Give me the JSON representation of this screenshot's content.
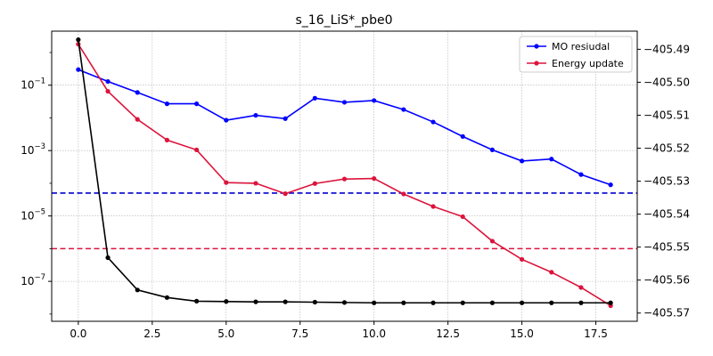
{
  "chart_data": {
    "type": "line",
    "title": "s_16_LiS*_pbe0",
    "xlabel": "",
    "ylabel": "",
    "y2label": "",
    "x": [
      0,
      1,
      2,
      3,
      4,
      5,
      6,
      7,
      8,
      9,
      10,
      11,
      12,
      13,
      14,
      15,
      16,
      17,
      18
    ],
    "xlim": [
      -0.9,
      18.9
    ],
    "x_ticks": [
      0,
      2.5,
      5,
      7.5,
      10,
      12.5,
      15,
      17.5
    ],
    "x_tick_labels": [
      "0.0",
      "2.5",
      "5.0",
      "7.5",
      "10.0",
      "12.5",
      "15.0",
      "17.5"
    ],
    "left_axis": {
      "scale": "log",
      "ylim": [
        6e-09,
        4.5
      ],
      "ticks": [
        0.1,
        0.001,
        1e-05,
        1e-07
      ],
      "tick_base": "10",
      "tick_exponents": [
        "−1",
        "−3",
        "−5",
        "−7"
      ]
    },
    "right_axis": {
      "scale": "linear",
      "ylim": [
        -405.5725,
        -405.4845
      ],
      "ticks": [
        -405.49,
        -405.5,
        -405.51,
        -405.52,
        -405.53,
        -405.54,
        -405.55,
        -405.56,
        -405.57
      ],
      "tick_labels": [
        "−405.49",
        "−405.50",
        "−405.51",
        "−405.52",
        "−405.53",
        "−405.54",
        "−405.55",
        "−405.56",
        "−405.57"
      ]
    },
    "series": [
      {
        "name": "MO resiudal",
        "axis": "left",
        "color": "#0000ff",
        "values": [
          0.3,
          0.13,
          0.06,
          0.027,
          0.027,
          0.0085,
          0.012,
          0.0095,
          0.04,
          0.03,
          0.034,
          0.018,
          0.0075,
          0.0027,
          0.00105,
          0.00048,
          0.00055,
          0.000185,
          9e-05
        ]
      },
      {
        "name": "Energy update",
        "axis": "left",
        "color": "#dc143c",
        "values": [
          1.8,
          0.065,
          0.009,
          0.0021,
          0.00105,
          0.000105,
          0.0001,
          4.8e-05,
          9.8e-05,
          0.000135,
          0.00014,
          4.7e-05,
          1.95e-05,
          9.5e-06,
          1.7e-06,
          4.7e-07,
          1.9e-07,
          6.5e-08,
          1.8e-08
        ]
      },
      {
        "axis": "right",
        "color": "#000000",
        "values": [
          -405.4871,
          -405.5532,
          -405.563,
          -405.5653,
          -405.5664,
          -405.5665,
          -405.5666,
          -405.5666,
          -405.5667,
          -405.5668,
          -405.5669,
          -405.5669,
          -405.5669,
          -405.5669,
          -405.5669,
          -405.5669,
          -405.5669,
          -405.5669,
          -405.5669
        ]
      }
    ],
    "reference_lines": [
      {
        "axis": "left",
        "value": 5e-05,
        "color": "#0000cd",
        "style": "dashed"
      },
      {
        "axis": "left",
        "value": 1e-06,
        "color": "#dc143c",
        "style": "dashed"
      }
    ],
    "grid": true,
    "legend_position": "top-right"
  }
}
